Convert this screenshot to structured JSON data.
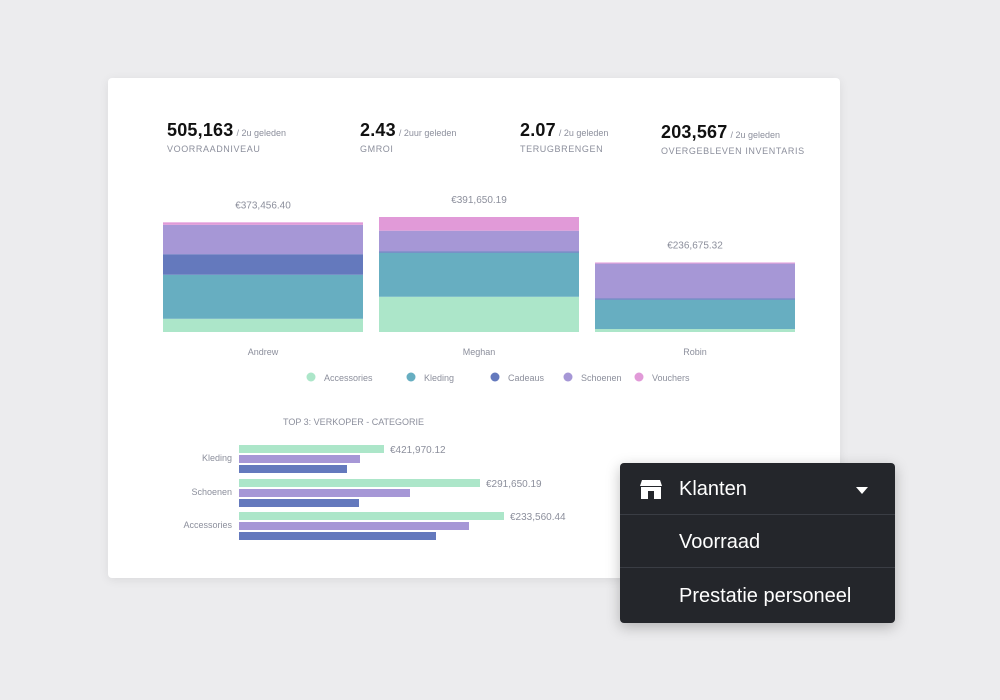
{
  "kpis": [
    {
      "value": "505,163",
      "ago": "/ 2u geleden",
      "label": "VOORRAADNIVEAU"
    },
    {
      "value": "2.43",
      "ago": "/ 2uur geleden",
      "label": "GMROI"
    },
    {
      "value": "2.07",
      "ago": "/ 2u geleden",
      "label": "TERUGBRENGEN"
    },
    {
      "value": "203,567",
      "ago": "/ 2u geleden",
      "label": "OVERGEBLEVEN INVENTARIS"
    }
  ],
  "colors": {
    "Accessories": "#ace6c9",
    "Kleding": "#67aec1",
    "Cadeaus": "#6479bd",
    "Schoenen": "#a697d6",
    "Vouchers": "#e19ad8"
  },
  "chart_data": [
    {
      "type": "bar",
      "stacked": true,
      "categories": [
        "Andrew",
        "Meghan",
        "Robin"
      ],
      "totals_labels": [
        "€373,456.40",
        "€391,650.19",
        "€236,675.32"
      ],
      "series": [
        {
          "name": "Accessories",
          "values": [
            45000,
            120000,
            10000
          ]
        },
        {
          "name": "Kleding",
          "values": [
            150000,
            150000,
            100000
          ]
        },
        {
          "name": "Cadeaus",
          "values": [
            70000,
            5000,
            5000
          ]
        },
        {
          "name": "Schoenen",
          "values": [
            100000,
            70000,
            118000
          ]
        },
        {
          "name": "Vouchers",
          "values": [
            8456.4,
            46650.19,
            3675.32
          ]
        }
      ],
      "legend": [
        "Accessories",
        "Kleding",
        "Cadeaus",
        "Schoenen",
        "Vouchers"
      ],
      "legend_position": "bottom"
    },
    {
      "type": "bar",
      "orientation": "horizontal",
      "title": "TOP 3: VERKOPER - CATEGORIE",
      "categories": [
        "Kleding",
        "Schoenen",
        "Accessories"
      ],
      "value_labels": [
        "€421,970.12",
        "€291,650.19",
        "€233,560.44"
      ],
      "series": [
        {
          "color": "#ace6c9",
          "values": [
            145,
            241,
            265
          ]
        },
        {
          "color": "#a697d6",
          "values": [
            121,
            171,
            230
          ]
        },
        {
          "color": "#6479bd",
          "values": [
            108,
            120,
            197
          ]
        }
      ]
    }
  ],
  "dropdown": {
    "selected": "Klanten",
    "items": [
      "Voorraad",
      "Prestatie personeel"
    ],
    "icon": "store-icon"
  }
}
